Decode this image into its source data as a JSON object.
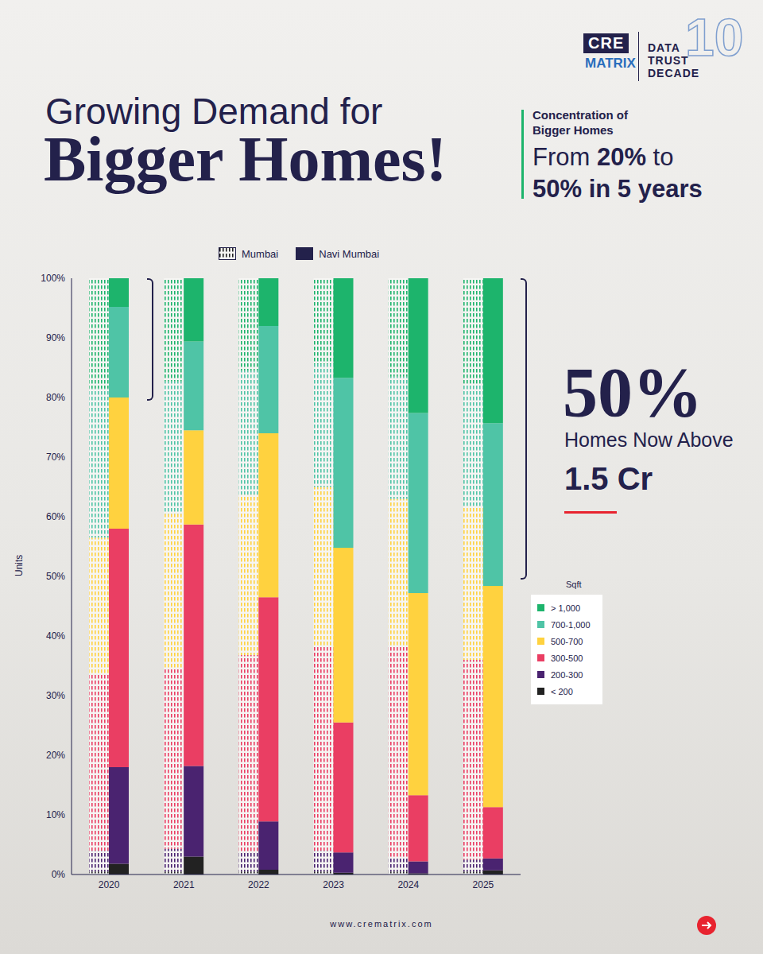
{
  "chart_data": {
    "type": "bar",
    "stacked": true,
    "grid": false,
    "legend": "right",
    "header": {
      "logo": [
        "CRE",
        "MATRIX"
      ],
      "badge": "10",
      "badge_lines": [
        "DATA",
        "TRUST",
        "DECADE"
      ]
    },
    "title": [
      "Growing Demand for",
      "Bigger Homes!"
    ],
    "subtitle": {
      "label": "Concentration of Bigger Homes",
      "lines": [
        "From 20% to",
        "50% in 5 years"
      ]
    },
    "annotation": {
      "headline": "50%",
      "lines": [
        "Homes Now Above",
        "1.5 Cr"
      ]
    },
    "ylabel": "Units",
    "categories": [
      "2020",
      "2021",
      "2022",
      "2023",
      "2024",
      "2025"
    ],
    "ylim": [
      0,
      100
    ],
    "yticks": [
      {
        "value": 0,
        "label": "0%"
      },
      {
        "value": 10,
        "label": "10%"
      },
      {
        "value": 20,
        "label": "20%"
      },
      {
        "value": 30,
        "label": "30%"
      },
      {
        "value": 40,
        "label": "40%"
      },
      {
        "value": 50,
        "label": "50%"
      },
      {
        "value": 60,
        "label": "60%"
      },
      {
        "value": 70,
        "label": "70%"
      },
      {
        "value": 80,
        "label": "80%"
      },
      {
        "value": 90,
        "label": "90%"
      },
      {
        "value": 100,
        "label": "100%"
      }
    ],
    "legend_title": "Sqft",
    "bands": [
      {
        "name": "> 1,000",
        "color": "#1db46c"
      },
      {
        "name": "700-1,000",
        "color": "#4fc4a6"
      },
      {
        "name": "500-700",
        "color": "#ffd23f"
      },
      {
        "name": "300-500",
        "color": "#ea3e63"
      },
      {
        "name": "200-300",
        "color": "#4a2370"
      },
      {
        "name": "< 200",
        "color": "#222222"
      }
    ],
    "stacks": [
      {
        "name": "Mumbai",
        "series": [
          {
            "name": "< 200",
            "values": [
              0.5,
              0.5,
              0.5,
              0.5,
              0.5,
              0.5
            ]
          },
          {
            "name": "200-300",
            "values": [
              3.5,
              3.8,
              3.2,
              3.5,
              2.3,
              2
            ]
          },
          {
            "name": "300-500",
            "values": [
              29.5,
              30.2,
              33.1,
              34.3,
              35.5,
              33.5
            ]
          },
          {
            "name": "500-700",
            "values": [
              23,
              26,
              26.9,
              26.7,
              24.7,
              25.8
            ]
          },
          {
            "name": "700-1,000",
            "values": [
              25,
              22.2,
              20.8,
              20.6,
              20.5,
              20.5
            ]
          },
          {
            "name": "> 1,000",
            "values": [
              18.5,
              17.3,
              15.5,
              14.4,
              16.5,
              17.7
            ]
          }
        ]
      },
      {
        "name": "Navi Mumbai",
        "series": [
          {
            "name": "< 200",
            "values": [
              1.8,
              3,
              0.8,
              0.3,
              0.2,
              0.7
            ]
          },
          {
            "name": "200-300",
            "values": [
              16.2,
              15.2,
              8.1,
              3.4,
              2,
              2
            ]
          },
          {
            "name": "300-500",
            "values": [
              40,
              40.5,
              37.6,
              21.8,
              11.1,
              8.6
            ]
          },
          {
            "name": "500-700",
            "values": [
              22,
              15.8,
              27.5,
              29.3,
              33.9,
              37.1
            ]
          },
          {
            "name": "700-1,000",
            "values": [
              15.2,
              14.9,
              18,
              28.5,
              30.2,
              27.3
            ]
          },
          {
            "name": "> 1,000",
            "values": [
              4.8,
              10.6,
              8,
              16.7,
              22.6,
              24.3
            ]
          }
        ]
      }
    ],
    "source": "www.crematrix.com"
  }
}
